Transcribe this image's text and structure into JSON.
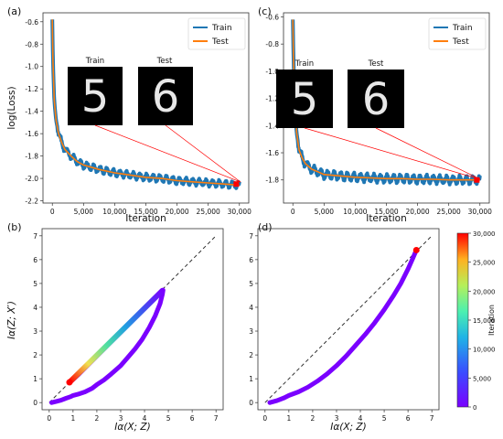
{
  "chart_data": [
    {
      "panel": "(a)",
      "type": "line",
      "ylabel": "log(Loss)",
      "xlabel": "Iteration",
      "xlim": [
        -1500,
        31500
      ],
      "ylim": [
        -2.22,
        -0.52
      ],
      "xticks": [
        0,
        5000,
        10000,
        15000,
        20000,
        25000,
        30000
      ],
      "xtick_labels": [
        "0",
        "5,000",
        "10,000",
        "15,000",
        "20,000",
        "25,000",
        "30,000"
      ],
      "yticks": [
        -0.6,
        -0.8,
        -1.0,
        -1.2,
        -1.4,
        -1.6,
        -1.8,
        -2.0,
        -2.2
      ],
      "ytick_labels": [
        "-0.6",
        "-0.8",
        "-1.0",
        "-1.2",
        "-1.4",
        "-1.6",
        "-1.8",
        "-2.0",
        "-2.2"
      ],
      "legend": "top-right",
      "series": [
        {
          "name": "Train",
          "color": "#1f77b4",
          "x": [
            0,
            100,
            300,
            600,
            1000,
            1500,
            2000,
            3000,
            4000,
            5000,
            7500,
            10000,
            12500,
            15000,
            17500,
            20000,
            22500,
            25000,
            27500,
            30000
          ],
          "y": [
            -0.58,
            -0.95,
            -1.3,
            -1.48,
            -1.6,
            -1.68,
            -1.74,
            -1.8,
            -1.85,
            -1.88,
            -1.92,
            -1.95,
            -1.97,
            -1.99,
            -2.0,
            -2.02,
            -2.03,
            -2.04,
            -2.05,
            -2.06
          ]
        },
        {
          "name": "Test",
          "color": "#ff7f0e",
          "x": [
            0,
            100,
            300,
            600,
            1000,
            1500,
            2000,
            3000,
            4000,
            5000,
            7500,
            10000,
            12500,
            15000,
            17500,
            20000,
            22500,
            25000,
            27500,
            30000
          ],
          "y": [
            -0.58,
            -0.95,
            -1.3,
            -1.48,
            -1.6,
            -1.68,
            -1.74,
            -1.8,
            -1.85,
            -1.88,
            -1.92,
            -1.95,
            -1.97,
            -1.99,
            -2.0,
            -2.02,
            -2.03,
            -2.04,
            -2.05,
            -2.06
          ]
        }
      ],
      "marker": {
        "x": 29500,
        "y": -2.05,
        "color": "#ff0000"
      },
      "insets": [
        {
          "label": "Train",
          "digit": "5"
        },
        {
          "label": "Test",
          "digit": "6"
        }
      ]
    },
    {
      "panel": "(c)",
      "type": "line",
      "ylabel": "",
      "xlabel": "Iteration",
      "xlim": [
        -1500,
        31500
      ],
      "ylim": [
        -1.97,
        -0.57
      ],
      "xticks": [
        0,
        5000,
        10000,
        15000,
        20000,
        25000,
        30000
      ],
      "xtick_labels": [
        "0",
        "5,000",
        "10,000",
        "15,000",
        "20,000",
        "25,000",
        "30,000"
      ],
      "yticks": [
        -0.6,
        -0.8,
        -1.0,
        -1.2,
        -1.4,
        -1.6,
        -1.8
      ],
      "ytick_labels": [
        "-0.6",
        "-0.8",
        "-1.0",
        "-1.2",
        "-1.4",
        "-1.6",
        "-1.8"
      ],
      "legend": "top-right",
      "series": [
        {
          "name": "Train",
          "color": "#1f77b4",
          "x": [
            0,
            100,
            300,
            600,
            1000,
            1500,
            2000,
            3000,
            4000,
            5000,
            7500,
            10000,
            12500,
            15000,
            17500,
            20000,
            22500,
            25000,
            27500,
            30000
          ],
          "y": [
            -0.62,
            -0.9,
            -1.25,
            -1.45,
            -1.58,
            -1.64,
            -1.68,
            -1.72,
            -1.74,
            -1.76,
            -1.77,
            -1.78,
            -1.785,
            -1.79,
            -1.79,
            -1.795,
            -1.795,
            -1.8,
            -1.8,
            -1.8
          ]
        },
        {
          "name": "Test",
          "color": "#ff7f0e",
          "x": [
            0,
            100,
            300,
            600,
            1000,
            1500,
            2000,
            3000,
            4000,
            5000,
            7500,
            10000,
            12500,
            15000,
            17500,
            20000,
            22500,
            25000,
            27500,
            30000
          ],
          "y": [
            -0.62,
            -0.9,
            -1.25,
            -1.45,
            -1.58,
            -1.64,
            -1.68,
            -1.72,
            -1.74,
            -1.76,
            -1.77,
            -1.78,
            -1.785,
            -1.79,
            -1.79,
            -1.795,
            -1.795,
            -1.8,
            -1.8,
            -1.8
          ]
        }
      ],
      "marker": {
        "x": 29500,
        "y": -1.8,
        "color": "#ff0000"
      },
      "insets": [
        {
          "label": "Train",
          "digit": "5"
        },
        {
          "label": "Test",
          "digit": "6"
        }
      ]
    },
    {
      "panel": "(b)",
      "type": "scatter",
      "ylabel": "Iα(Z; X′)",
      "xlabel": "Iα(X; Z)",
      "xlim": [
        -0.3,
        7.3
      ],
      "ylim": [
        -0.3,
        7.3
      ],
      "xticks": [
        0,
        1,
        2,
        3,
        4,
        5,
        6,
        7
      ],
      "yticks": [
        0,
        1,
        2,
        3,
        4,
        5,
        6,
        7
      ],
      "diagonal": true,
      "path_x": [
        0.1,
        0.3,
        0.5,
        0.7,
        0.9,
        1.0,
        1.2,
        1.5,
        1.8,
        2.0,
        2.3,
        2.6,
        3.0,
        3.3,
        3.6,
        3.9,
        4.2,
        4.45,
        4.65,
        4.75,
        4.78,
        4.5,
        4.0,
        3.5,
        3.0,
        2.5,
        2.0,
        1.5,
        1.2,
        0.95,
        0.85
      ],
      "path_y": [
        0.0,
        0.05,
        0.1,
        0.18,
        0.25,
        0.3,
        0.35,
        0.45,
        0.6,
        0.75,
        0.95,
        1.2,
        1.55,
        1.9,
        2.25,
        2.65,
        3.15,
        3.65,
        4.15,
        4.55,
        4.72,
        4.45,
        3.95,
        3.45,
        2.95,
        2.45,
        1.95,
        1.45,
        1.15,
        0.92,
        0.85
      ],
      "endpoint": {
        "x": 0.85,
        "y": 0.85,
        "color": "#ff0000"
      }
    },
    {
      "panel": "(d)",
      "type": "scatter",
      "ylabel": "",
      "xlabel": "Iα(X; Z)",
      "xlim": [
        -0.3,
        7.3
      ],
      "ylim": [
        -0.3,
        7.3
      ],
      "xticks": [
        0,
        1,
        2,
        3,
        4,
        5,
        6,
        7
      ],
      "yticks": [
        0,
        1,
        2,
        3,
        4,
        5,
        6,
        7
      ],
      "diagonal": true,
      "path_x": [
        0.2,
        0.5,
        0.8,
        1.0,
        1.4,
        1.8,
        2.2,
        2.6,
        3.0,
        3.4,
        3.8,
        4.2,
        4.6,
        5.0,
        5.4,
        5.7,
        6.0,
        6.2,
        6.35
      ],
      "path_y": [
        0.0,
        0.08,
        0.2,
        0.3,
        0.45,
        0.65,
        0.9,
        1.2,
        1.55,
        1.95,
        2.4,
        2.85,
        3.35,
        3.9,
        4.5,
        5.0,
        5.6,
        6.05,
        6.4
      ],
      "endpoint": {
        "x": 6.35,
        "y": 6.4,
        "color": "#ff0000"
      }
    }
  ],
  "colorbar": {
    "label": "Iteration",
    "ticks": [
      0,
      5000,
      10000,
      15000,
      20000,
      25000,
      30000
    ],
    "tick_labels": [
      "0",
      "5,000",
      "10,000",
      "15,000",
      "20,000",
      "25,000",
      "30,000"
    ]
  },
  "colors": {
    "train": "#1f77b4",
    "test": "#ff7f0e",
    "marker": "#ff0000",
    "diagonal": "#333333"
  }
}
